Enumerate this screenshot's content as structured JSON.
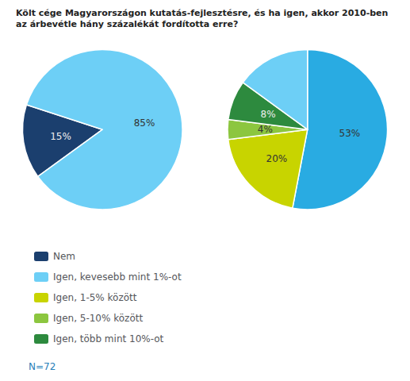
{
  "chart_data": {
    "type": "pie",
    "title": "Költ cége Magyarországon kutatás-fejlesztésre, és ha igen, akkor 2010-ben",
    "subtitle": "az árbevétle hány százalékát fordította erre?",
    "legend": "lower left",
    "data_labels": true,
    "series": [
      {
        "categories": [
          "Nem",
          "Igen, kevesebb mint 1%-ot"
        ],
        "values": [
          15,
          85
        ],
        "colors": [
          "#1b3f6e",
          "#6dcff6"
        ],
        "value_labels": [
          "15%",
          "85%"
        ]
      },
      {
        "categories": [
          null,
          "Igen, 1-5% között",
          "Igen, 5-10% között",
          "Igen, több mint 10%-ot",
          "Igen, kevesebb mint 1%-ot"
        ],
        "values": [
          53,
          20,
          4,
          8,
          15
        ],
        "colors": [
          "#29abe2",
          "#c8d400",
          "#8cc63f",
          "#2d8a3e",
          "#6dcff6"
        ],
        "value_labels": [
          "53%",
          "20%",
          "4%",
          "8%",
          null
        ]
      }
    ],
    "annotations": [
      {
        "text": "N=72",
        "color": "#2980b9"
      }
    ]
  }
}
